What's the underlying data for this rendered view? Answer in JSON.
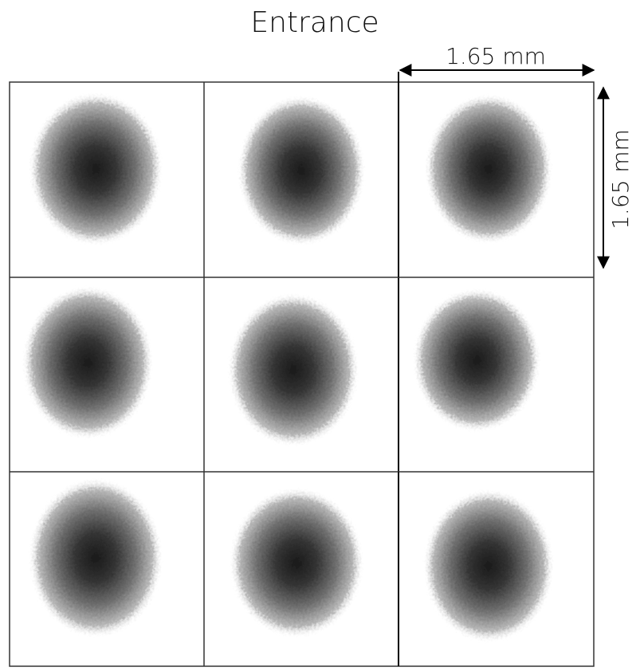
{
  "figure": {
    "title": "Entrance",
    "width_label": "1.65 mm",
    "height_label": "1.65 mm"
  }
}
